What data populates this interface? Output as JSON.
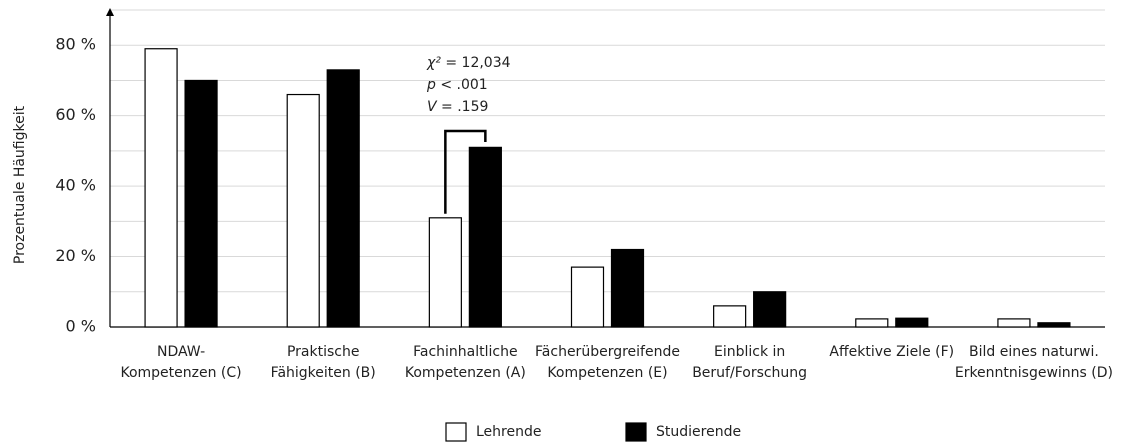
{
  "chart_data": {
    "type": "bar",
    "y_label": "Prozentuale Häufigkeit",
    "categories": [
      [
        "NDAW-",
        "Kompetenzen (C)"
      ],
      [
        "Praktische",
        "Fähigkeiten (B)"
      ],
      [
        "Fachinhaltliche",
        "Kompetenzen (A)"
      ],
      [
        "Fächerübergreifende",
        "Kompetenzen (E)"
      ],
      [
        "Einblick in",
        "Beruf/Forschung"
      ],
      [
        "Affektive Ziele (F)"
      ],
      [
        "Bild eines naturwi.",
        "Erkenntnisgewinns (D)"
      ]
    ],
    "series": [
      {
        "name": "Lehrende",
        "color": "#ffffff",
        "values": [
          79,
          66,
          31,
          17,
          6,
          2.3,
          2.3
        ]
      },
      {
        "name": "Studierende",
        "color": "#000000",
        "values": [
          70,
          73,
          51,
          22,
          10,
          2.5,
          1.2
        ]
      }
    ],
    "ylim": [
      0,
      90
    ],
    "yticks": [
      {
        "value": 0,
        "label": "0 %"
      },
      {
        "value": 20,
        "label": "20 %"
      },
      {
        "value": 40,
        "label": "40 %"
      },
      {
        "value": 60,
        "label": "60 %"
      },
      {
        "value": 80,
        "label": "80 %"
      }
    ],
    "ygrid": [
      10,
      20,
      30,
      40,
      50,
      60,
      70,
      80,
      90
    ],
    "grid": true,
    "annotation": {
      "category": 2,
      "lines": [
        {
          "symbol": "χ²",
          "text": " = 12,034"
        },
        {
          "symbol": "p",
          "text": " < .001"
        },
        {
          "symbol": "V",
          "text": " = .159"
        }
      ]
    },
    "legend": "bottom"
  }
}
